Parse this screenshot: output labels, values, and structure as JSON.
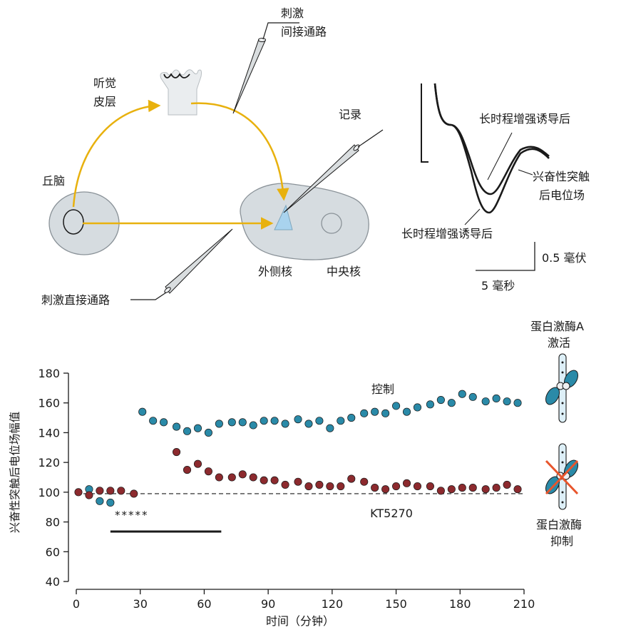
{
  "colors": {
    "pathway": "#E8B10E",
    "structure_fill": "#D6DCE0",
    "structure_stroke": "#8A9298",
    "triangle_fill": "#A9D3EE",
    "control_points": "#2A8AA8",
    "inhibited_points": "#8C2A2E",
    "cross": "#E8552C"
  },
  "diagram": {
    "stim_indirect": [
      "刺激",
      "间接通路"
    ],
    "auditory_cortex": [
      "听觉",
      "皮层"
    ],
    "thalamus": "丘脑",
    "record": "记录",
    "lateral_nucleus": "外侧核",
    "central_nucleus": "中央核",
    "stim_direct": "刺激直接通路"
  },
  "trace": {
    "label_after_ltp_top": "长时程增强诱导后",
    "label_epsp_field": [
      "兴奋性突触",
      "后电位场"
    ],
    "label_after_ltp_bottom": "长时程增强诱导后",
    "scale_voltage": "0.5 毫伏",
    "scale_time": "5 毫秒"
  },
  "pka": {
    "active_label": [
      "蛋白激酶A",
      "激活"
    ],
    "inhibited_label": [
      "蛋白激酶",
      "抑制"
    ]
  },
  "chart_data": {
    "type": "scatter",
    "xlabel": "时间（分钟）",
    "ylabel": "兴奋性突触后电位场幅值",
    "xlim": [
      0,
      210
    ],
    "ylim": [
      40,
      180
    ],
    "xticks": [
      0,
      30,
      60,
      90,
      120,
      150,
      180,
      210
    ],
    "yticks": [
      40,
      60,
      80,
      100,
      120,
      140,
      160,
      180
    ],
    "baseline": 99,
    "stimulus_marker": "*****",
    "drug_label": "KT5270",
    "drug_bar": [
      16,
      68
    ],
    "series": [
      {
        "name": "控制",
        "x": [
          6,
          11,
          16,
          31,
          36,
          41,
          47,
          52,
          57,
          62,
          67,
          73,
          78,
          83,
          88,
          93,
          98,
          104,
          109,
          114,
          119,
          124,
          129,
          135,
          140,
          145,
          150,
          155,
          160,
          166,
          171,
          176,
          181,
          186,
          192,
          197,
          202,
          207
        ],
        "values": [
          102,
          94,
          93,
          154,
          148,
          147,
          144,
          141,
          143,
          140,
          146,
          147,
          147,
          145,
          148,
          148,
          146,
          149,
          146,
          148,
          143,
          148,
          150,
          153,
          154,
          153,
          158,
          154,
          157,
          159,
          162,
          160,
          166,
          164,
          161,
          163,
          161,
          160
        ]
      },
      {
        "name": "",
        "x": [
          1,
          6,
          11,
          16,
          21,
          27,
          47,
          52,
          57,
          62,
          67,
          73,
          78,
          83,
          88,
          93,
          98,
          104,
          109,
          114,
          119,
          124,
          129,
          135,
          140,
          145,
          150,
          155,
          160,
          166,
          171,
          176,
          181,
          186,
          192,
          197,
          202,
          207
        ],
        "values": [
          100,
          98,
          101,
          101,
          101,
          99,
          127,
          115,
          119,
          114,
          110,
          110,
          112,
          110,
          108,
          108,
          105,
          107,
          104,
          105,
          104,
          104,
          109,
          107,
          103,
          102,
          104,
          106,
          104,
          104,
          101,
          102,
          103,
          103,
          102,
          103,
          105,
          102
        ]
      }
    ]
  }
}
